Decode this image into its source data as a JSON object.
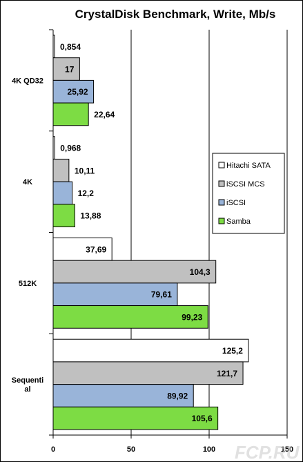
{
  "chart_data": {
    "type": "bar",
    "orientation": "horizontal",
    "title": "CrystalDisk Benchmark, Write, Mb/s",
    "categories": [
      "4K QD32",
      "4K",
      "512K",
      "Sequential"
    ],
    "category_display": [
      [
        "4K QD32"
      ],
      [
        "4K"
      ],
      [
        "512K"
      ],
      [
        "Sequenti",
        "al"
      ]
    ],
    "series": [
      {
        "name": "Hitachi SATA",
        "color": "#ffffff",
        "values": [
          0.854,
          0.968,
          37.69,
          125.2
        ],
        "labels": [
          "0,854",
          "0,968",
          "37,69",
          "125,2"
        ]
      },
      {
        "name": "iSCSI MCS",
        "color": "#c0c0c0",
        "values": [
          17,
          10.11,
          104.3,
          121.7
        ],
        "labels": [
          "17",
          "10,11",
          "104,3",
          "121,7"
        ]
      },
      {
        "name": "iSCSI",
        "color": "#99b4d9",
        "values": [
          25.92,
          12.2,
          79.61,
          89.92
        ],
        "labels": [
          "25,92",
          "12,2",
          "79,61",
          "89,92"
        ]
      },
      {
        "name": "Samba",
        "color": "#7ddc44",
        "values": [
          22.64,
          13.88,
          99.23,
          105.6
        ],
        "labels": [
          "22,64",
          "13,88",
          "99,23",
          "105,6"
        ]
      }
    ],
    "xlim": [
      0,
      150
    ],
    "xticks": [
      0,
      50,
      100,
      150
    ],
    "xtick_labels": [
      "0",
      "50",
      "100",
      "150"
    ],
    "grid": "vertical",
    "legend": "right"
  },
  "watermark": "FCP.RU",
  "colors": {
    "background": "#ffffff",
    "frame": "#000000"
  }
}
